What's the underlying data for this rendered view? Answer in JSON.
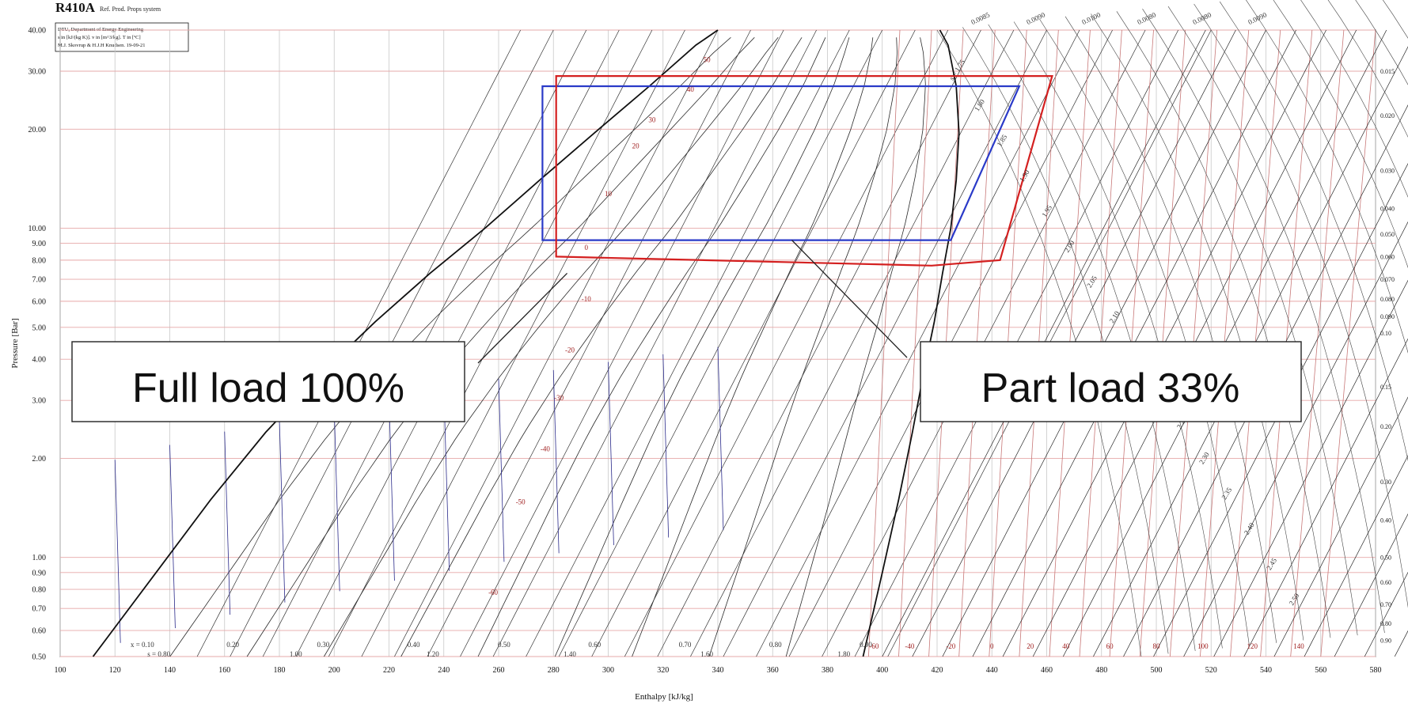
{
  "chart_data": {
    "type": "line",
    "title": "R410A",
    "subtitle": "Ref. Prod. Props system",
    "info_box": [
      "DTU, Department of Energy Engineering",
      "s in [kJ/(kg K)]. v in [m^3/kg]. T in [ºC]",
      "M.J. Skovrup & H.J.H Knudsen. 19-09-21"
    ],
    "xlabel": "Enthalpy [kJ/kg]",
    "ylabel": "Pressure [Bar]",
    "xlim": [
      100,
      580
    ],
    "ylim": [
      0.5,
      40
    ],
    "yscale": "log",
    "x_ticks": [
      100,
      120,
      140,
      160,
      180,
      200,
      220,
      240,
      260,
      280,
      300,
      320,
      340,
      360,
      380,
      400,
      420,
      440,
      460,
      480,
      500,
      520,
      540,
      560,
      580
    ],
    "x_tick_labels": [
      "100",
      "120",
      "140",
      "160",
      "180",
      "200",
      "220",
      "240",
      "260",
      "280",
      "300",
      "320",
      "340",
      "360",
      "380",
      "400",
      "420",
      "440",
      "460",
      "480",
      "500",
      "520",
      "540",
      "560",
      "580"
    ],
    "y_ticks": [
      0.5,
      0.6,
      0.7,
      0.8,
      0.9,
      1.0,
      2.0,
      3.0,
      4.0,
      5.0,
      6.0,
      7.0,
      8.0,
      9.0,
      10.0,
      20.0,
      30.0,
      40.0
    ],
    "y_tick_labels": [
      "0.50",
      "0.60",
      "0.70",
      "0.80",
      "0.90",
      "1.00",
      "2.00",
      "3.00",
      "4.00",
      "5.00",
      "6.00",
      "7.00",
      "8.00",
      "9.00",
      "10.00",
      "20.00",
      "30.00",
      "40.00"
    ],
    "grid": true,
    "saturated_liquid": [
      [
        112,
        0.5
      ],
      [
        135,
        0.9
      ],
      [
        155,
        1.5
      ],
      [
        175,
        2.4
      ],
      [
        195,
        3.6
      ],
      [
        215,
        5.2
      ],
      [
        235,
        7.3
      ],
      [
        255,
        10
      ],
      [
        275,
        14
      ],
      [
        295,
        19.5
      ],
      [
        315,
        27
      ],
      [
        332,
        36
      ],
      [
        340,
        40
      ]
    ],
    "saturated_vapor": [
      [
        393,
        0.5
      ],
      [
        400,
        0.9
      ],
      [
        406,
        1.5
      ],
      [
        411,
        2.4
      ],
      [
        415,
        3.6
      ],
      [
        419,
        5.2
      ],
      [
        422,
        7.3
      ],
      [
        425,
        10
      ],
      [
        427,
        14
      ],
      [
        428,
        19.5
      ],
      [
        427,
        27
      ],
      [
        424,
        36
      ],
      [
        421,
        40
      ]
    ],
    "quality_labels": [
      "x = 0.10",
      "0.20",
      "0.30",
      "0.40",
      "0.50",
      "0.60",
      "0.70",
      "0.80",
      "0.90"
    ],
    "quality_label_h": [
      130,
      163,
      196,
      229,
      262,
      295,
      328,
      361,
      394
    ],
    "entropy_labels": [
      "s = 0.80",
      "1.00",
      "1.20",
      "1.40",
      "1.60",
      "1.80"
    ],
    "entropy_label_h": [
      136,
      186,
      236,
      286,
      336,
      386
    ],
    "isotherm_labels": [
      "50",
      "40",
      "30",
      "20",
      "10",
      "0",
      "-10",
      "-20",
      "-30",
      "-40",
      "-50",
      "-60"
    ],
    "isotherm_label_points": [
      [
        336,
        32
      ],
      [
        330,
        26
      ],
      [
        316,
        21
      ],
      [
        310,
        17.5
      ],
      [
        300,
        12.5
      ],
      [
        292,
        8.6
      ],
      [
        292,
        6
      ],
      [
        286,
        4.2
      ],
      [
        282,
        3
      ],
      [
        277,
        2.1
      ],
      [
        268,
        1.45
      ],
      [
        258,
        0.77
      ]
    ],
    "vapor_temp_labels": [
      "-60",
      "-40",
      "-20",
      "0",
      "20",
      "40",
      "60",
      "80",
      "100",
      "120",
      "140"
    ],
    "vapor_temp_label_h": [
      397,
      410,
      425,
      440,
      454,
      467,
      483,
      500,
      517,
      535,
      552
    ],
    "right_volume_labels": [
      "0.015",
      "0.020",
      "0.030",
      "0.040",
      "0.050",
      "0.060",
      "0.070",
      "0.080",
      "0.090",
      "0.10",
      "0.15",
      "0.20",
      "0.30",
      "0.40",
      "0.50",
      "0.60",
      "0.70",
      "0.80",
      "0.90"
    ],
    "right_volume_pressures": [
      30,
      22,
      15,
      11.5,
      9.6,
      8.2,
      7.0,
      6.1,
      5.4,
      4.8,
      3.3,
      2.5,
      1.7,
      1.3,
      1.0,
      0.84,
      0.72,
      0.63,
      0.56
    ],
    "superheat_entropy_labels": [
      "s = 1.75",
      "1.80",
      "1.85",
      "1.90",
      "1.95",
      "2.00",
      "2.05",
      "2.10",
      "2.15",
      "2.20",
      "2.25",
      "2.30",
      "2.35",
      "2.40",
      "2.45",
      "2.50"
    ],
    "top_volume_labels": [
      "0.0085",
      "0.0090",
      "0.0100",
      "0.0080",
      "0.0080",
      "0.0090"
    ],
    "series": [
      {
        "name": "Full load 100%",
        "color": "#2a3ac8",
        "points": [
          [
            276,
            27
          ],
          [
            424,
            27
          ],
          [
            450,
            27
          ],
          [
            425,
            9.2
          ],
          [
            286,
            9.2
          ],
          [
            276,
            9.2
          ],
          [
            276,
            27
          ]
        ]
      },
      {
        "name": "Part load 33%",
        "color": "#d42020",
        "points": [
          [
            281,
            29
          ],
          [
            424,
            29
          ],
          [
            462,
            29
          ],
          [
            443,
            8
          ],
          [
            418,
            7.7
          ],
          [
            281,
            8.2
          ],
          [
            281,
            29
          ]
        ]
      }
    ],
    "annotations": [
      {
        "text": "Full load 100%",
        "pointer": [
          285,
          7.3
        ]
      },
      {
        "text": "Part load 33%",
        "pointer": [
          367,
          9.2
        ]
      }
    ]
  }
}
